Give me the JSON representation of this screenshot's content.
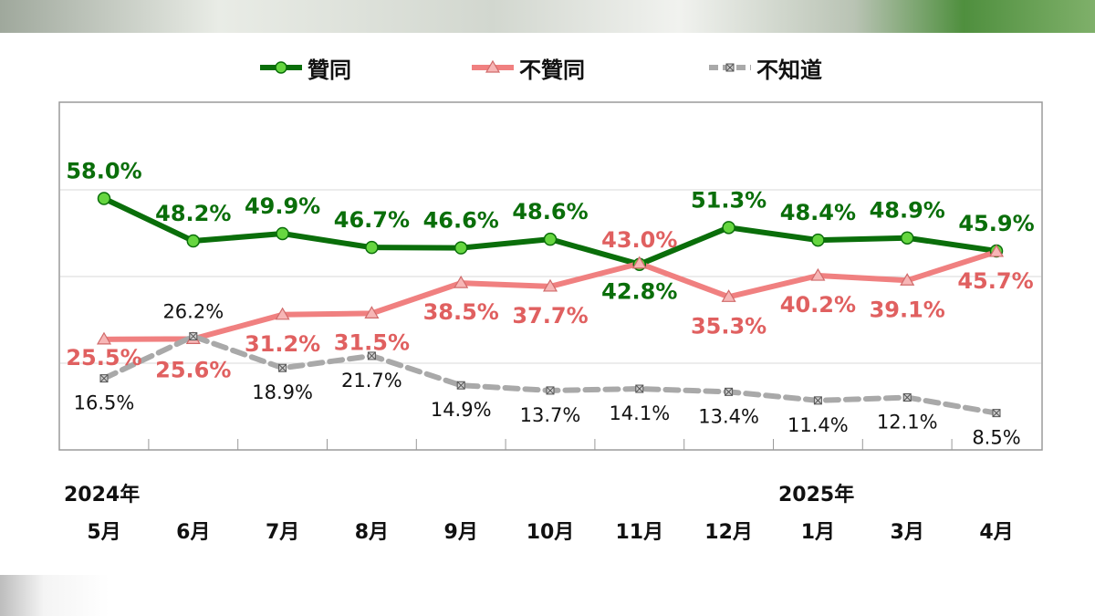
{
  "colors": {
    "approve": "#0a6e0a",
    "approve_marker": "#66d640",
    "disapprove": "#f08080",
    "disapprove_label": "#e06060",
    "unknown": "#a9a9a9",
    "unknown_label": "#111111"
  },
  "legend": {
    "approve": "贊同",
    "disapprove": "不贊同",
    "unknown": "不知道"
  },
  "years": {
    "start": "2024年",
    "end": "2025年"
  },
  "chart_data": {
    "type": "line",
    "categories": [
      "5月",
      "6月",
      "7月",
      "8月",
      "9月",
      "10月",
      "11月",
      "12月",
      "1月",
      "3月",
      "4月"
    ],
    "series": [
      {
        "name": "贊同",
        "values": [
          58.0,
          48.2,
          49.9,
          46.7,
          46.6,
          48.6,
          42.8,
          51.3,
          48.4,
          48.9,
          45.9
        ],
        "labels": [
          "58.0%",
          "48.2%",
          "49.9%",
          "46.7%",
          "46.6%",
          "48.6%",
          "42.8%",
          "51.3%",
          "48.4%",
          "48.9%",
          "45.9%"
        ]
      },
      {
        "name": "不贊同",
        "values": [
          25.5,
          25.6,
          31.2,
          31.5,
          38.5,
          37.7,
          43.0,
          35.3,
          40.2,
          39.1,
          45.7
        ],
        "labels": [
          "25.5%",
          "25.6%",
          "31.2%",
          "31.5%",
          "38.5%",
          "37.7%",
          "43.0%",
          "35.3%",
          "40.2%",
          "39.1%",
          "45.7%"
        ]
      },
      {
        "name": "不知道",
        "values": [
          16.5,
          26.2,
          18.9,
          21.7,
          14.9,
          13.7,
          14.1,
          13.4,
          11.4,
          12.1,
          8.5
        ],
        "labels": [
          "16.5%",
          "26.2%",
          "18.9%",
          "21.7%",
          "14.9%",
          "13.7%",
          "14.1%",
          "13.4%",
          "11.4%",
          "12.1%",
          "8.5%"
        ]
      }
    ],
    "ylim": [
      0,
      70
    ],
    "grid": true,
    "legend_position": "top-center"
  }
}
